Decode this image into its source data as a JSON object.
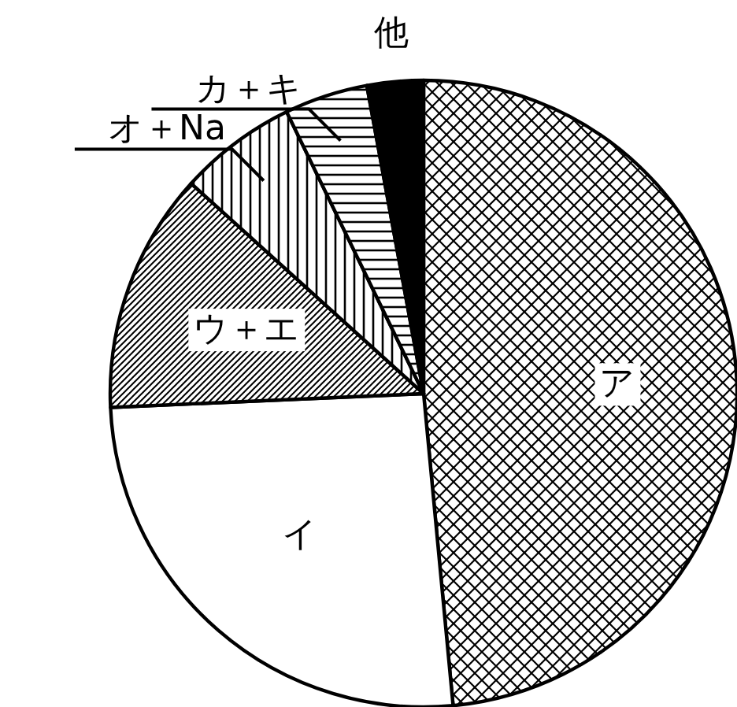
{
  "chart_data": {
    "type": "pie",
    "categories": [
      "ア",
      "イ",
      "ウ＋エ",
      "オ＋Na",
      "カ＋キ",
      "他"
    ],
    "values": [
      48.5,
      25.8,
      12.4,
      6.1,
      4.3,
      2.9
    ],
    "colors": [
      "#000000",
      "#ffffff",
      "#000000",
      "#000000",
      "#000000",
      "#000000"
    ]
  }
}
